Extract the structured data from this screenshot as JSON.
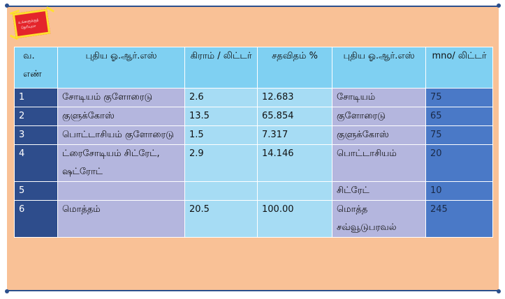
{
  "badge": {
    "line1": "உங்களுக்குத்",
    "line2": "தெரியுமா"
  },
  "table": {
    "headers": [
      "வ. எண்",
      "புதிய ஓ.ஆர்.எஸ்",
      "கிராம் / லிட்டர்",
      "சதவிதம் %",
      "புதிய ஓ.ஆர்.எஸ்",
      "mno/ லிட்டர்"
    ],
    "rows": [
      [
        "1",
        "சோடியம் குளோரைடு",
        "2.6",
        "12.683",
        "சோடியம்",
        "75"
      ],
      [
        "2",
        "குளுக்கோஸ்",
        "13.5",
        "65.854",
        "குளோரைடு",
        "65"
      ],
      [
        "3",
        "பொட்டாசியம் குளோரைடு",
        "1.5",
        "7.317",
        "குளுக்கோஸ்",
        "75"
      ],
      [
        "4",
        "ட்ரைசோடியம் சிட்ரேட், ஷட்ரோட்",
        "2.9",
        "14.146",
        "பொட்டாசியம்",
        "20"
      ],
      [
        "5",
        "",
        "",
        "",
        "சிட்ரேட்",
        "10"
      ],
      [
        "6",
        "மொத்தம்",
        "20.5",
        "100.00",
        "மொத்த சவ்வூடுபரவல்",
        "245"
      ]
    ]
  },
  "colors": {
    "panel": "#f9c196",
    "border": "#2b4f8c",
    "header": "#7fd0f2",
    "num_col": "#2e4d8c",
    "lavender": "#b4b6de",
    "light_blue": "#a6dcf4",
    "mid_blue": "#4a79c7"
  }
}
